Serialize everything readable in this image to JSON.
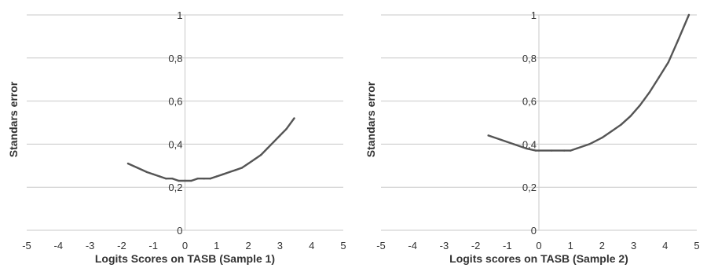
{
  "chart_data": [
    {
      "type": "line",
      "xlabel": "Logits Scores on TASB (Sample 1)",
      "ylabel": "Standars error",
      "xlim": [
        -5,
        5
      ],
      "ylim": [
        0,
        1
      ],
      "xticks": [
        "-5",
        "-4",
        "-3",
        "-2",
        "-1",
        "0",
        "1",
        "2",
        "3",
        "4",
        "5"
      ],
      "yticks": [
        "0",
        "0,2",
        "0,4",
        "0,6",
        "0,8",
        "1"
      ],
      "grid": "horizontal",
      "series": [
        {
          "color": "#555555",
          "x": [
            -1.8,
            -1.5,
            -1.2,
            -1.0,
            -0.8,
            -0.6,
            -0.4,
            -0.2,
            0.0,
            0.2,
            0.4,
            0.6,
            0.8,
            1.0,
            1.2,
            1.4,
            1.6,
            1.8,
            2.0,
            2.2,
            2.4,
            2.6,
            2.8,
            3.0,
            3.2,
            3.45
          ],
          "values": [
            0.31,
            0.29,
            0.27,
            0.26,
            0.25,
            0.24,
            0.24,
            0.23,
            0.23,
            0.23,
            0.24,
            0.24,
            0.24,
            0.25,
            0.26,
            0.27,
            0.28,
            0.29,
            0.31,
            0.33,
            0.35,
            0.38,
            0.41,
            0.44,
            0.47,
            0.52
          ]
        }
      ]
    },
    {
      "type": "line",
      "xlabel": "Logits scores on TASB (Sample 2)",
      "ylabel": "Standars error",
      "xlim": [
        -5,
        5
      ],
      "ylim": [
        0,
        1
      ],
      "xticks": [
        "-5",
        "-4",
        "-3",
        "-2",
        "-1",
        "0",
        "1",
        "2",
        "3",
        "4",
        "5"
      ],
      "yticks": [
        "0",
        "0,2",
        "0,4",
        "0,6",
        "0,8",
        "1"
      ],
      "grid": "horizontal",
      "series": [
        {
          "color": "#555555",
          "x": [
            -1.6,
            -1.2,
            -0.8,
            -0.4,
            -0.1,
            0.0,
            0.4,
            0.8,
            1.0,
            1.2,
            1.6,
            2.0,
            2.3,
            2.6,
            2.9,
            3.2,
            3.5,
            3.8,
            4.1,
            4.4,
            4.75
          ],
          "values": [
            0.44,
            0.42,
            0.4,
            0.38,
            0.37,
            0.37,
            0.37,
            0.37,
            0.37,
            0.38,
            0.4,
            0.43,
            0.46,
            0.49,
            0.53,
            0.58,
            0.64,
            0.71,
            0.78,
            0.88,
            1.0
          ]
        }
      ]
    }
  ]
}
